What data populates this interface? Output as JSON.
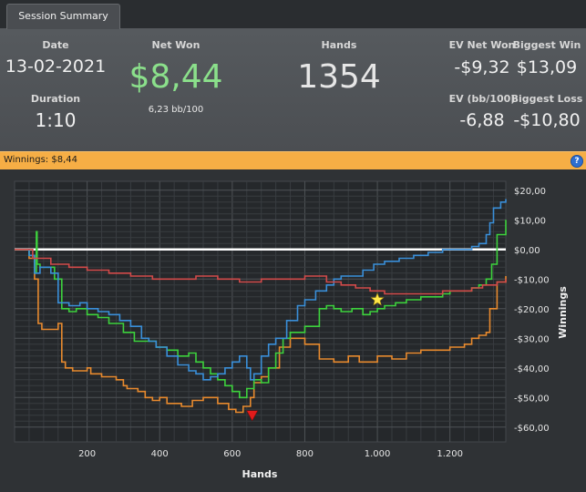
{
  "tab": {
    "label": "Session Summary"
  },
  "summary": {
    "date_label": "Date",
    "date_value": "13-02-2021",
    "duration_label": "Duration",
    "duration_value": "1:10",
    "net_won_label": "Net Won",
    "net_won_value": "$8,44",
    "net_won_sub": "6,23 bb/100",
    "hands_label": "Hands",
    "hands_value": "1354",
    "ev_net_won_label": "EV Net Won",
    "ev_net_won_value": "-$9,32",
    "ev_bb_label": "EV (bb/100)",
    "ev_bb_value": "-6,88",
    "biggest_win_label": "Biggest Win",
    "biggest_win_value": "$13,09",
    "biggest_loss_label": "Biggest Loss",
    "biggest_loss_value": "-$10,80"
  },
  "band": {
    "title": "Winnings: $8,44",
    "help_icon": "?"
  },
  "colors": {
    "net_won": "#8be08b",
    "green": "#3dd23d",
    "blue": "#3a8fd9",
    "red": "#d24a4a",
    "orange": "#e88a2e",
    "band": "#f6ae45"
  },
  "chart_data": {
    "type": "line",
    "xlabel": "Hands",
    "ylabel": "Winnings",
    "xlim": [
      0,
      1354
    ],
    "ylim": [
      -65,
      23
    ],
    "x_ticks": [
      200,
      400,
      600,
      800,
      1000,
      1200
    ],
    "x_tick_labels": [
      "200",
      "400",
      "600",
      "800",
      "1.000",
      "1.200"
    ],
    "y_ticks": [
      20,
      10,
      0,
      -10,
      -20,
      -30,
      -40,
      -50,
      -60
    ],
    "y_tick_labels": [
      "$20,00",
      "$10,00",
      "$0,00",
      "-$10,00",
      "-$20,00",
      "-$30,00",
      "-$40,00",
      "-$50,00",
      "-$60,00"
    ],
    "grid": true,
    "legend": "none",
    "series": [
      {
        "color": "orange",
        "points": [
          [
            0,
            0
          ],
          [
            40,
            -3
          ],
          [
            55,
            -10
          ],
          [
            65,
            -25
          ],
          [
            75,
            -27
          ],
          [
            120,
            -25
          ],
          [
            130,
            -38
          ],
          [
            140,
            -40
          ],
          [
            160,
            -41
          ],
          [
            200,
            -40
          ],
          [
            210,
            -42
          ],
          [
            240,
            -43
          ],
          [
            280,
            -44
          ],
          [
            300,
            -46
          ],
          [
            310,
            -47
          ],
          [
            340,
            -48
          ],
          [
            360,
            -50
          ],
          [
            380,
            -51
          ],
          [
            400,
            -50
          ],
          [
            420,
            -52
          ],
          [
            460,
            -53
          ],
          [
            490,
            -51
          ],
          [
            520,
            -50
          ],
          [
            560,
            -52
          ],
          [
            590,
            -54
          ],
          [
            610,
            -55
          ],
          [
            630,
            -53
          ],
          [
            650,
            -50
          ],
          [
            660,
            -45
          ],
          [
            680,
            -43
          ],
          [
            700,
            -40
          ],
          [
            730,
            -33
          ],
          [
            760,
            -30
          ],
          [
            800,
            -32
          ],
          [
            840,
            -37
          ],
          [
            880,
            -38
          ],
          [
            920,
            -36
          ],
          [
            950,
            -38
          ],
          [
            980,
            -38
          ],
          [
            1000,
            -36
          ],
          [
            1040,
            -37
          ],
          [
            1080,
            -35
          ],
          [
            1120,
            -34
          ],
          [
            1160,
            -34
          ],
          [
            1200,
            -33
          ],
          [
            1240,
            -32
          ],
          [
            1260,
            -30
          ],
          [
            1280,
            -29
          ],
          [
            1300,
            -28
          ],
          [
            1310,
            -20
          ],
          [
            1330,
            -11
          ],
          [
            1354,
            -9
          ]
        ]
      },
      {
        "color": "green",
        "points": [
          [
            0,
            0
          ],
          [
            40,
            -2
          ],
          [
            55,
            -8
          ],
          [
            60,
            6
          ],
          [
            62,
            -5
          ],
          [
            70,
            -6
          ],
          [
            110,
            -10
          ],
          [
            130,
            -20
          ],
          [
            150,
            -21
          ],
          [
            170,
            -20
          ],
          [
            200,
            -22
          ],
          [
            230,
            -23
          ],
          [
            260,
            -25
          ],
          [
            300,
            -28
          ],
          [
            330,
            -31
          ],
          [
            360,
            -31
          ],
          [
            390,
            -33
          ],
          [
            420,
            -34
          ],
          [
            450,
            -36
          ],
          [
            480,
            -35
          ],
          [
            500,
            -38
          ],
          [
            520,
            -40
          ],
          [
            540,
            -42
          ],
          [
            560,
            -44
          ],
          [
            580,
            -46
          ],
          [
            600,
            -48
          ],
          [
            620,
            -50
          ],
          [
            640,
            -47
          ],
          [
            660,
            -44
          ],
          [
            680,
            -45
          ],
          [
            700,
            -40
          ],
          [
            720,
            -35
          ],
          [
            740,
            -30
          ],
          [
            760,
            -28
          ],
          [
            780,
            -28
          ],
          [
            800,
            -26
          ],
          [
            840,
            -20
          ],
          [
            860,
            -19
          ],
          [
            880,
            -20
          ],
          [
            900,
            -21
          ],
          [
            930,
            -20
          ],
          [
            960,
            -22
          ],
          [
            980,
            -21
          ],
          [
            1000,
            -20
          ],
          [
            1020,
            -19
          ],
          [
            1050,
            -18
          ],
          [
            1080,
            -17
          ],
          [
            1100,
            -17
          ],
          [
            1120,
            -16
          ],
          [
            1150,
            -16
          ],
          [
            1180,
            -15
          ],
          [
            1200,
            -14
          ],
          [
            1230,
            -14
          ],
          [
            1260,
            -13
          ],
          [
            1280,
            -12
          ],
          [
            1300,
            -10
          ],
          [
            1315,
            -5
          ],
          [
            1330,
            5
          ],
          [
            1354,
            10
          ]
        ]
      },
      {
        "color": "blue",
        "points": [
          [
            0,
            0
          ],
          [
            40,
            -2
          ],
          [
            55,
            -8
          ],
          [
            70,
            -6
          ],
          [
            100,
            -8
          ],
          [
            120,
            -18
          ],
          [
            150,
            -19
          ],
          [
            180,
            -18
          ],
          [
            200,
            -20
          ],
          [
            230,
            -21
          ],
          [
            260,
            -22
          ],
          [
            290,
            -24
          ],
          [
            320,
            -26
          ],
          [
            350,
            -30
          ],
          [
            370,
            -31
          ],
          [
            390,
            -33
          ],
          [
            420,
            -36
          ],
          [
            450,
            -39
          ],
          [
            480,
            -41
          ],
          [
            500,
            -42
          ],
          [
            520,
            -44
          ],
          [
            540,
            -43
          ],
          [
            560,
            -42
          ],
          [
            580,
            -40
          ],
          [
            600,
            -38
          ],
          [
            620,
            -36
          ],
          [
            640,
            -40
          ],
          [
            650,
            -44
          ],
          [
            660,
            -42
          ],
          [
            680,
            -36
          ],
          [
            700,
            -32
          ],
          [
            720,
            -30
          ],
          [
            750,
            -24
          ],
          [
            780,
            -19
          ],
          [
            800,
            -17
          ],
          [
            830,
            -14
          ],
          [
            860,
            -12
          ],
          [
            880,
            -10
          ],
          [
            900,
            -9
          ],
          [
            930,
            -9
          ],
          [
            960,
            -7
          ],
          [
            990,
            -5
          ],
          [
            1020,
            -4
          ],
          [
            1060,
            -3
          ],
          [
            1100,
            -2
          ],
          [
            1140,
            -1
          ],
          [
            1180,
            0
          ],
          [
            1220,
            0
          ],
          [
            1260,
            1
          ],
          [
            1280,
            2
          ],
          [
            1300,
            5
          ],
          [
            1310,
            9
          ],
          [
            1320,
            14
          ],
          [
            1340,
            16
          ],
          [
            1354,
            17
          ]
        ]
      },
      {
        "color": "red",
        "points": [
          [
            0,
            0
          ],
          [
            50,
            -3
          ],
          [
            100,
            -5
          ],
          [
            150,
            -6
          ],
          [
            200,
            -7
          ],
          [
            260,
            -8
          ],
          [
            320,
            -9
          ],
          [
            380,
            -10
          ],
          [
            440,
            -10
          ],
          [
            500,
            -9
          ],
          [
            560,
            -10
          ],
          [
            620,
            -11
          ],
          [
            680,
            -10
          ],
          [
            740,
            -10
          ],
          [
            800,
            -9
          ],
          [
            860,
            -11
          ],
          [
            900,
            -12
          ],
          [
            940,
            -13
          ],
          [
            980,
            -14
          ],
          [
            1020,
            -15
          ],
          [
            1060,
            -15
          ],
          [
            1100,
            -15
          ],
          [
            1140,
            -15
          ],
          [
            1180,
            -14
          ],
          [
            1220,
            -14
          ],
          [
            1260,
            -13
          ],
          [
            1290,
            -12
          ],
          [
            1310,
            -12
          ],
          [
            1330,
            -11
          ],
          [
            1354,
            -10
          ]
        ]
      }
    ],
    "markers": [
      {
        "kind": "star",
        "x": 1000,
        "y": -17,
        "color": "#ffe84a"
      },
      {
        "kind": "triangle-down",
        "x": 655,
        "y": -56,
        "color": "#e11b1b"
      }
    ]
  }
}
